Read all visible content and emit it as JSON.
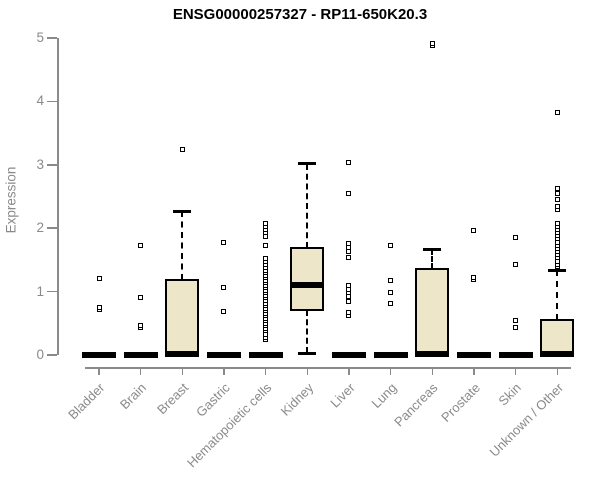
{
  "chart_data": {
    "type": "boxplot",
    "title": "ENSG00000257327 - RP11-650K20.3",
    "ylabel": "Expression",
    "xlabel": "",
    "ylim": [
      0,
      5
    ],
    "yticks": [
      0,
      1,
      2,
      3,
      4,
      5
    ],
    "grid": false,
    "legend": false,
    "box_fill_color": "#EDE6C9",
    "box_border_color": "#000000",
    "axis_color": "#8a8a8a",
    "tick_label_color": "#8a8a8a",
    "title_color": "#000000",
    "categories": [
      "Bladder",
      "Brain",
      "Breast",
      "Gastric",
      "Hematopoietic cells",
      "Kidney",
      "Liver",
      "Lung",
      "Pancreas",
      "Prostate",
      "Skin",
      "Unknown / Other"
    ],
    "boxes": [
      {
        "category": "Bladder",
        "whisker_low": 0,
        "q1": 0,
        "median": 0,
        "q3": 0,
        "whisker_high": 0,
        "outliers": [
          0.72,
          0.75,
          1.2
        ]
      },
      {
        "category": "Brain",
        "whisker_low": 0,
        "q1": 0,
        "median": 0,
        "q3": 0,
        "whisker_high": 0,
        "outliers": [
          0.43,
          0.46,
          0.9,
          1.73
        ]
      },
      {
        "category": "Breast",
        "whisker_low": 0,
        "q1": 0,
        "median": 0.02,
        "q3": 1.19,
        "whisker_high": 2.27,
        "outliers": [
          3.24
        ]
      },
      {
        "category": "Gastric",
        "whisker_low": 0,
        "q1": 0,
        "median": 0,
        "q3": 0,
        "whisker_high": 0,
        "outliers": [
          0.68,
          1.06,
          1.78
        ]
      },
      {
        "category": "Hematopoietic cells",
        "whisker_low": 0,
        "q1": 0,
        "median": 0,
        "q3": 0,
        "whisker_high": 0,
        "outliers": [
          0.24,
          0.28,
          0.33,
          0.38,
          0.42,
          0.46,
          0.5,
          0.54,
          0.58,
          0.62,
          0.66,
          0.7,
          0.74,
          0.78,
          0.82,
          0.86,
          0.9,
          0.94,
          0.98,
          1.02,
          1.06,
          1.1,
          1.14,
          1.18,
          1.22,
          1.26,
          1.3,
          1.34,
          1.38,
          1.42,
          1.47,
          1.52,
          1.73,
          1.87,
          1.93,
          1.98,
          2.03,
          2.08
        ]
      },
      {
        "category": "Kidney",
        "whisker_low": 0.03,
        "q1": 0.71,
        "median": 1.1,
        "q3": 1.69,
        "whisker_high": 3.02,
        "outliers": []
      },
      {
        "category": "Liver",
        "whisker_low": 0,
        "q1": 0,
        "median": 0,
        "q3": 0,
        "whisker_high": 0,
        "outliers": [
          0.63,
          0.67,
          0.85,
          0.92,
          0.98,
          1.04,
          1.1,
          1.53,
          1.64,
          1.7,
          1.76,
          2.54,
          3.04
        ]
      },
      {
        "category": "Lung",
        "whisker_low": 0,
        "q1": 0,
        "median": 0,
        "q3": 0,
        "whisker_high": 0,
        "outliers": [
          0.82,
          0.99,
          1.17,
          1.73
        ]
      },
      {
        "category": "Pancreas",
        "whisker_low": 0,
        "q1": 0,
        "median": 0.02,
        "q3": 1.36,
        "whisker_high": 1.67,
        "outliers": [
          4.88,
          4.92
        ]
      },
      {
        "category": "Prostate",
        "whisker_low": 0,
        "q1": 0,
        "median": 0,
        "q3": 0,
        "whisker_high": 0,
        "outliers": [
          1.19,
          1.23,
          1.97
        ]
      },
      {
        "category": "Skin",
        "whisker_low": 0,
        "q1": 0,
        "median": 0,
        "q3": 0,
        "whisker_high": 0,
        "outliers": [
          0.43,
          0.55,
          1.43,
          1.86
        ]
      },
      {
        "category": "Unknown / Other",
        "whisker_low": 0,
        "q1": 0,
        "median": 0.02,
        "q3": 0.55,
        "whisker_high": 1.34,
        "outliers": [
          1.39,
          1.43,
          1.48,
          1.53,
          1.58,
          1.63,
          1.68,
          1.73,
          1.78,
          1.83,
          1.88,
          1.93,
          1.98,
          2.03,
          2.08,
          2.29,
          2.35,
          2.45,
          2.54,
          2.63,
          3.82
        ]
      }
    ]
  }
}
